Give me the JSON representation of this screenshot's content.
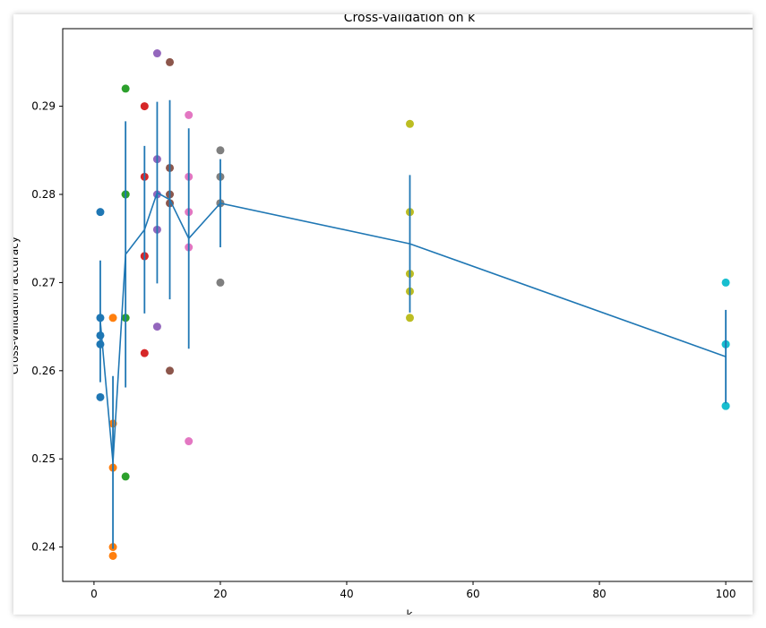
{
  "chart_data": {
    "type": "scatter",
    "title": "Cross-validation on k",
    "xlabel": "k",
    "ylabel": "Cross-validation accuracy",
    "xlim": [
      -4.95,
      104.95
    ],
    "ylim": [
      0.2361,
      0.2988
    ],
    "xticks": [
      0,
      20,
      40,
      60,
      80,
      100
    ],
    "yticks": [
      0.24,
      0.25,
      0.26,
      0.27,
      0.28,
      0.29
    ],
    "grid": false,
    "series": [
      {
        "x": 1,
        "values": [
          0.263,
          0.257,
          0.264,
          0.278,
          0.266
        ],
        "color": "#1f77b4"
      },
      {
        "x": 3,
        "values": [
          0.239,
          0.249,
          0.24,
          0.266,
          0.254
        ],
        "color": "#ff7f0e"
      },
      {
        "x": 5,
        "values": [
          0.248,
          0.266,
          0.28,
          0.292,
          0.28
        ],
        "color": "#2ca02c"
      },
      {
        "x": 8,
        "values": [
          0.262,
          0.282,
          0.273,
          0.29,
          0.273
        ],
        "color": "#d62728"
      },
      {
        "x": 10,
        "values": [
          0.265,
          0.296,
          0.276,
          0.284,
          0.28
        ],
        "color": "#9467bd"
      },
      {
        "x": 12,
        "values": [
          0.26,
          0.295,
          0.279,
          0.283,
          0.28
        ],
        "color": "#8c564b"
      },
      {
        "x": 15,
        "values": [
          0.252,
          0.289,
          0.274,
          0.282,
          0.278
        ],
        "color": "#e377c2"
      },
      {
        "x": 20,
        "values": [
          0.27,
          0.279,
          0.279,
          0.282,
          0.285
        ],
        "color": "#7f7f7f"
      },
      {
        "x": 50,
        "values": [
          0.271,
          0.288,
          0.278,
          0.269,
          0.266
        ],
        "color": "#bcbd22"
      },
      {
        "x": 100,
        "values": [
          0.256,
          0.27,
          0.263,
          0.256,
          0.263
        ],
        "color": "#17becf"
      }
    ],
    "mean_line": {
      "x": [
        1,
        3,
        5,
        8,
        10,
        12,
        15,
        20,
        50,
        100
      ],
      "mean": [
        0.2656,
        0.2496,
        0.2732,
        0.276,
        0.2802,
        0.2794,
        0.275,
        0.279,
        0.2744,
        0.2616
      ],
      "std": [
        0.0069,
        0.0098,
        0.0151,
        0.0095,
        0.0103,
        0.0113,
        0.0125,
        0.005,
        0.0078,
        0.0053
      ],
      "color": "#1f77b4"
    }
  }
}
